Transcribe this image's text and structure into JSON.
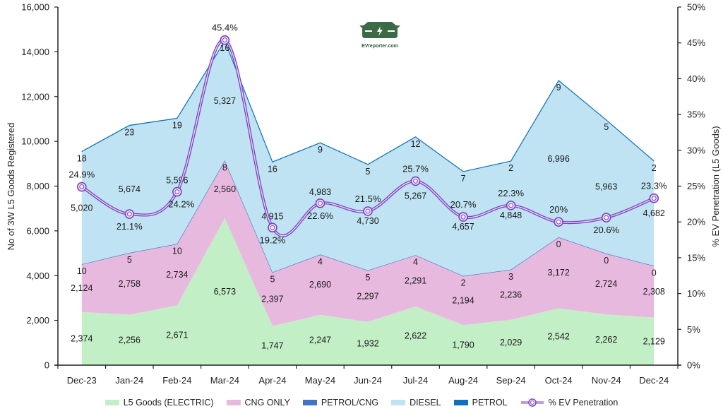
{
  "logo": {
    "text": "EVreporter.com",
    "icon": "ev-car-charging-icon",
    "color": "#3b6b45"
  },
  "chart_data": {
    "type": "area",
    "stacked": true,
    "title": "",
    "categories": [
      "Dec-23",
      "Jan-24",
      "Feb-24",
      "Mar-24",
      "Apr-24",
      "May-24",
      "Jun-24",
      "Jul-24",
      "Aug-24",
      "Sep-24",
      "Oct-24",
      "Nov-24",
      "Dec-24"
    ],
    "ylabel": "No of 3W L5 Goods Registered",
    "y2label": "% EV Penetration (L5 Goods)",
    "ylim": [
      0,
      16000
    ],
    "yticks": [
      0,
      2000,
      4000,
      6000,
      8000,
      10000,
      12000,
      14000,
      16000
    ],
    "ytick_labels": [
      "0",
      "2,000",
      "4,000",
      "6,000",
      "8,000",
      "10,000",
      "12,000",
      "14,000",
      "16,000"
    ],
    "y2lim": [
      0,
      50
    ],
    "y2ticks": [
      0,
      5,
      10,
      15,
      20,
      25,
      30,
      35,
      40,
      45,
      50
    ],
    "y2tick_labels": [
      "0%",
      "5%",
      "10%",
      "15%",
      "20%",
      "25%",
      "30%",
      "35%",
      "40%",
      "45%",
      "50%"
    ],
    "grid": false,
    "legend_position": "bottom",
    "series": [
      {
        "name": "L5 Goods (ELECTRIC)",
        "color": "#c3efc6",
        "values": [
          2374,
          2256,
          2671,
          6573,
          1747,
          2247,
          1932,
          2622,
          1790,
          2029,
          2542,
          2262,
          2129
        ],
        "labels": [
          "2,374",
          "2,256",
          "2,671",
          "6,573",
          "1,747",
          "2,247",
          "1,932",
          "2,622",
          "1,790",
          "2,029",
          "2,542",
          "2,262",
          "2,129"
        ]
      },
      {
        "name": "CNG ONLY",
        "color": "#e8b9df",
        "values": [
          2124,
          2758,
          2734,
          2560,
          2397,
          2690,
          2297,
          2291,
          2194,
          2236,
          3172,
          2724,
          2308
        ],
        "labels": [
          "2,124",
          "2,758",
          "2,734",
          "2,560",
          "2,397",
          "2,690",
          "2,297",
          "2,291",
          "2,194",
          "2,236",
          "3,172",
          "2,724",
          "2,308"
        ]
      },
      {
        "name": "PETROL/CNG",
        "color": "#4472c4",
        "values": [
          10,
          5,
          10,
          8,
          5,
          4,
          5,
          4,
          2,
          3,
          0,
          0,
          0
        ],
        "labels": [
          "10",
          "5",
          "10",
          "8",
          "5",
          "4",
          "5",
          "4",
          "2",
          "3",
          "0",
          "0",
          "0"
        ]
      },
      {
        "name": "DIESEL",
        "color": "#bfe3f3",
        "values": [
          5020,
          5674,
          5596,
          5327,
          4915,
          4983,
          4730,
          5267,
          4657,
          4848,
          6996,
          5963,
          4682
        ],
        "labels": [
          "5,020",
          "5,674",
          "5,596",
          "5,327",
          "4,915",
          "4,983",
          "4,730",
          "5,267",
          "4,657",
          "4,848",
          "6,996",
          "5,963",
          "4,682"
        ]
      },
      {
        "name": "PETROL",
        "color": "#0d6fbd",
        "values": [
          18,
          23,
          19,
          16,
          16,
          9,
          5,
          12,
          7,
          2,
          9,
          5,
          2
        ],
        "labels": [
          "18",
          "23",
          "19",
          "16",
          "16",
          "9",
          "5",
          "12",
          "7",
          "2",
          "9",
          "5",
          "2"
        ]
      }
    ],
    "line_series": {
      "name": "% EV Penetration",
      "color": "#7a3fc0",
      "axis": "right",
      "values": [
        24.9,
        21.1,
        24.2,
        45.4,
        19.2,
        22.6,
        21.5,
        25.7,
        20.7,
        22.3,
        20.0,
        20.6,
        23.3
      ],
      "labels": [
        "24.9%",
        "21.1%",
        "24.2%",
        "45.4%",
        "19.2%",
        "22.6%",
        "21.5%",
        "25.7%",
        "20.7%",
        "22.3%",
        "20%",
        "20.6%",
        "23.3%"
      ]
    }
  }
}
